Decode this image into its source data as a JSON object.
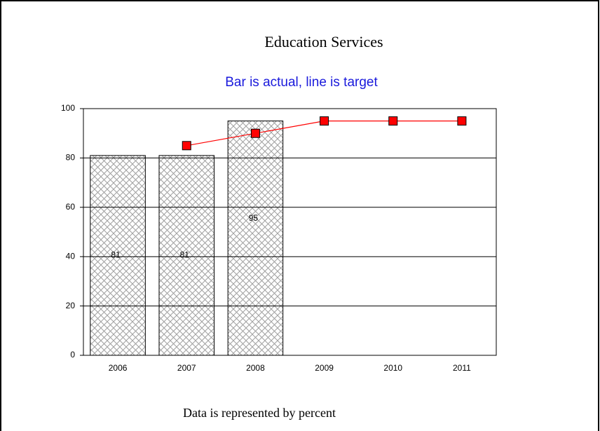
{
  "chart_data": {
    "type": "bar",
    "title": "Education Services",
    "subtitle": "Bar is actual, line is target",
    "footnote": "Data is represented by percent",
    "categories": [
      "2006",
      "2007",
      "2008",
      "2009",
      "2010",
      "2011"
    ],
    "series": [
      {
        "type": "bar",
        "color": "#909090",
        "values": [
          81,
          81,
          95,
          null,
          null,
          null
        ]
      },
      {
        "type": "line",
        "color": "#ff0000",
        "values": [
          null,
          85,
          90,
          95,
          95,
          95
        ]
      }
    ],
    "ylim": [
      0,
      100
    ],
    "yticks": [
      0,
      20,
      40,
      60,
      80,
      100
    ],
    "grid": true
  }
}
